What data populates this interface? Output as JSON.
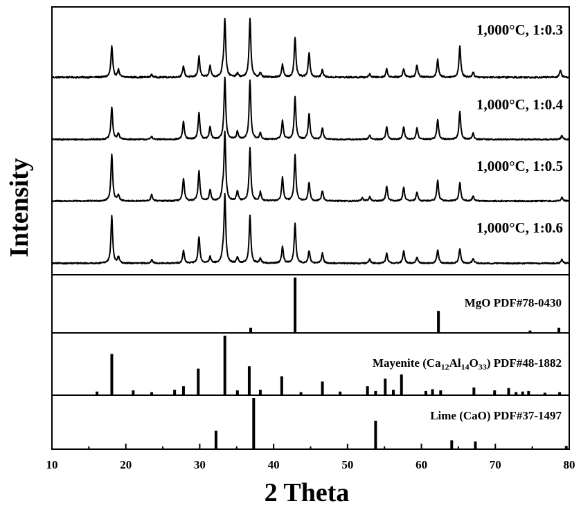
{
  "chart_data": {
    "type": "line",
    "xlabel": "2 Theta",
    "ylabel": "Intensity",
    "xlim": [
      10,
      80
    ],
    "x_ticks": [
      "10",
      "20",
      "30",
      "40",
      "50",
      "60",
      "70",
      "80"
    ],
    "y_ticks_shown": false,
    "series": [
      {
        "name": "1,000°C, 1:0.3",
        "baseline": 0.07,
        "noise": 0.012,
        "peaks": [
          [
            18.1,
            0.5
          ],
          [
            19.0,
            0.12
          ],
          [
            23.5,
            0.04
          ],
          [
            27.8,
            0.18
          ],
          [
            29.9,
            0.33
          ],
          [
            31.4,
            0.18
          ],
          [
            33.1,
            0.1
          ],
          [
            33.4,
            0.93
          ],
          [
            35.1,
            0.06
          ],
          [
            36.8,
            0.95
          ],
          [
            38.2,
            0.07
          ],
          [
            41.2,
            0.2
          ],
          [
            42.9,
            0.63
          ],
          [
            44.8,
            0.4
          ],
          [
            46.6,
            0.12
          ],
          [
            53.0,
            0.05
          ],
          [
            55.3,
            0.13
          ],
          [
            57.6,
            0.14
          ],
          [
            59.4,
            0.2
          ],
          [
            62.2,
            0.28
          ],
          [
            65.2,
            0.5
          ],
          [
            67.0,
            0.08
          ],
          [
            78.8,
            0.12
          ]
        ]
      },
      {
        "name": "1,000°C, 1:0.4",
        "baseline": 0.05,
        "noise": 0.01,
        "peaks": [
          [
            18.1,
            0.52
          ],
          [
            19.0,
            0.1
          ],
          [
            23.5,
            0.05
          ],
          [
            27.8,
            0.28
          ],
          [
            29.9,
            0.43
          ],
          [
            31.4,
            0.2
          ],
          [
            33.4,
            1.0
          ],
          [
            35.1,
            0.12
          ],
          [
            36.8,
            0.95
          ],
          [
            38.2,
            0.1
          ],
          [
            41.2,
            0.3
          ],
          [
            42.9,
            0.68
          ],
          [
            44.8,
            0.42
          ],
          [
            46.6,
            0.18
          ],
          [
            53.0,
            0.07
          ],
          [
            55.3,
            0.2
          ],
          [
            57.6,
            0.2
          ],
          [
            59.4,
            0.18
          ],
          [
            62.2,
            0.32
          ],
          [
            65.2,
            0.45
          ],
          [
            67.0,
            0.1
          ],
          [
            79.0,
            0.06
          ]
        ]
      },
      {
        "name": "1,000°C, 1:0.5",
        "baseline": 0.05,
        "noise": 0.01,
        "peaks": [
          [
            18.1,
            0.76
          ],
          [
            19.0,
            0.1
          ],
          [
            23.5,
            0.1
          ],
          [
            27.8,
            0.36
          ],
          [
            29.9,
            0.48
          ],
          [
            31.4,
            0.18
          ],
          [
            33.1,
            0.12
          ],
          [
            33.4,
            1.1
          ],
          [
            35.1,
            0.16
          ],
          [
            36.8,
            0.85
          ],
          [
            38.2,
            0.14
          ],
          [
            41.2,
            0.38
          ],
          [
            42.9,
            0.74
          ],
          [
            44.8,
            0.3
          ],
          [
            46.6,
            0.16
          ],
          [
            52.0,
            0.05
          ],
          [
            53.0,
            0.07
          ],
          [
            55.3,
            0.24
          ],
          [
            57.6,
            0.22
          ],
          [
            59.4,
            0.14
          ],
          [
            62.2,
            0.33
          ],
          [
            65.2,
            0.3
          ],
          [
            67.0,
            0.08
          ],
          [
            79.0,
            0.06
          ]
        ]
      },
      {
        "name": "1,000°C, 1:0.6",
        "baseline": 0.05,
        "noise": 0.01,
        "peaks": [
          [
            18.1,
            0.76
          ],
          [
            19.0,
            0.1
          ],
          [
            23.5,
            0.06
          ],
          [
            27.8,
            0.2
          ],
          [
            29.9,
            0.43
          ],
          [
            31.4,
            0.1
          ],
          [
            33.1,
            0.1
          ],
          [
            33.4,
            1.1
          ],
          [
            35.1,
            0.1
          ],
          [
            36.8,
            0.76
          ],
          [
            38.2,
            0.08
          ],
          [
            41.2,
            0.27
          ],
          [
            42.9,
            0.64
          ],
          [
            44.8,
            0.2
          ],
          [
            46.6,
            0.16
          ],
          [
            53.0,
            0.06
          ],
          [
            55.3,
            0.16
          ],
          [
            57.6,
            0.2
          ],
          [
            59.4,
            0.1
          ],
          [
            62.2,
            0.22
          ],
          [
            65.2,
            0.24
          ],
          [
            67.0,
            0.08
          ],
          [
            79.0,
            0.06
          ]
        ]
      }
    ],
    "references": [
      {
        "name": "MgO PDF#78-0430",
        "sticks": [
          [
            36.9,
            0.08
          ],
          [
            42.9,
            1.0
          ],
          [
            62.3,
            0.39
          ],
          [
            74.7,
            0.03
          ],
          [
            78.6,
            0.08
          ]
        ]
      },
      {
        "name_parts": [
          {
            "text": "Mayenite (Ca",
            "sub": false
          },
          {
            "text": "12",
            "sub": true
          },
          {
            "text": "Al",
            "sub": false
          },
          {
            "text": "14",
            "sub": true
          },
          {
            "text": "O",
            "sub": false
          },
          {
            "text": "33",
            "sub": true
          },
          {
            "text": ") PDF#48-1882",
            "sub": false
          }
        ],
        "sticks": [
          [
            16.1,
            0.05
          ],
          [
            18.1,
            0.69
          ],
          [
            21.0,
            0.07
          ],
          [
            23.5,
            0.04
          ],
          [
            26.6,
            0.08
          ],
          [
            27.8,
            0.14
          ],
          [
            29.8,
            0.44
          ],
          [
            33.4,
            1.0
          ],
          [
            35.1,
            0.07
          ],
          [
            36.7,
            0.48
          ],
          [
            38.2,
            0.08
          ],
          [
            41.1,
            0.31
          ],
          [
            43.7,
            0.04
          ],
          [
            46.6,
            0.22
          ],
          [
            49.0,
            0.05
          ],
          [
            52.7,
            0.14
          ],
          [
            53.8,
            0.06
          ],
          [
            55.1,
            0.27
          ],
          [
            56.2,
            0.08
          ],
          [
            57.3,
            0.34
          ],
          [
            60.6,
            0.06
          ],
          [
            61.5,
            0.09
          ],
          [
            62.6,
            0.07
          ],
          [
            67.1,
            0.12
          ],
          [
            69.9,
            0.07
          ],
          [
            71.8,
            0.11
          ],
          [
            72.8,
            0.04
          ],
          [
            73.7,
            0.05
          ],
          [
            74.5,
            0.06
          ],
          [
            76.7,
            0.03
          ],
          [
            78.7,
            0.04
          ]
        ]
      },
      {
        "name": "Lime (CaO) PDF#37-1497",
        "sticks": [
          [
            32.2,
            0.35
          ],
          [
            37.3,
            1.0
          ],
          [
            53.8,
            0.55
          ],
          [
            64.1,
            0.16
          ],
          [
            67.3,
            0.14
          ],
          [
            79.6,
            0.05
          ]
        ]
      }
    ]
  }
}
